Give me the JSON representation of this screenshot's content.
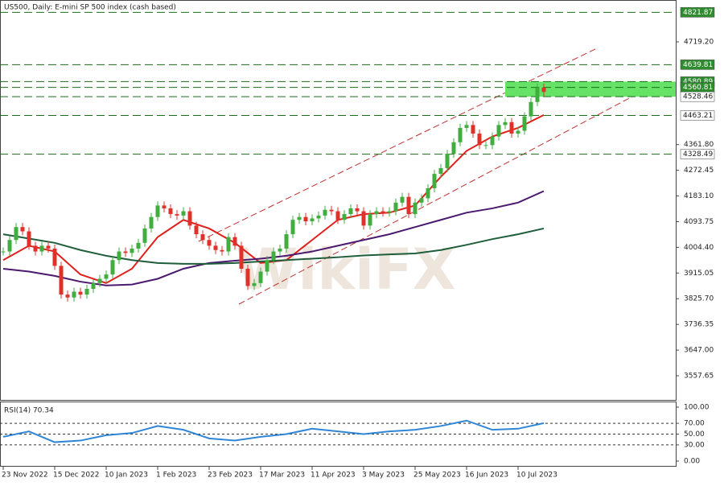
{
  "chart_data": {
    "type": "candlestick",
    "title": "US500, Daily:  E-mini SP 500 index (cash based)",
    "watermark": "WikiFX",
    "categories": [
      "23 Nov 2022",
      null,
      null,
      null,
      null,
      null,
      null,
      null,
      "15 Dec 2022",
      null,
      null,
      null,
      null,
      null,
      null,
      null,
      "10 Jan 2023",
      null,
      null,
      null,
      null,
      null,
      null,
      null,
      "1 Feb 2023",
      null,
      null,
      null,
      null,
      null,
      null,
      null,
      "23 Feb 2023",
      null,
      null,
      null,
      null,
      null,
      null,
      null,
      "17 Mar 2023",
      null,
      null,
      null,
      null,
      null,
      null,
      null,
      "11 Apr 2023",
      null,
      null,
      null,
      null,
      null,
      null,
      null,
      "3 May 2023",
      null,
      null,
      null,
      null,
      null,
      null,
      null,
      "25 May 2023",
      null,
      null,
      null,
      null,
      null,
      null,
      null,
      "16 Jun 2023",
      null,
      null,
      null,
      null,
      null,
      null,
      null,
      "10 Jul 2023",
      null,
      null,
      null,
      null
    ],
    "closes": [
      3990,
      4030,
      4075,
      4060,
      4010,
      3990,
      4010,
      4000,
      3940,
      3840,
      3830,
      3850,
      3840,
      3860,
      3880,
      3895,
      3910,
      3960,
      3990,
      3985,
      4000,
      4020,
      4070,
      4110,
      4150,
      4140,
      4120,
      4115,
      4130,
      4080,
      4050,
      4030,
      4010,
      3995,
      3990,
      4040,
      4010,
      3930,
      3870,
      3880,
      3920,
      3960,
      3990,
      4000,
      4050,
      4100,
      4110,
      4095,
      4105,
      4115,
      4135,
      4130,
      4100,
      4120,
      4140,
      4130,
      4080,
      4120,
      4130,
      4125,
      4130,
      4160,
      4180,
      4120,
      4160,
      4175,
      4210,
      4260,
      4280,
      4330,
      4370,
      4420,
      4430,
      4400,
      4360,
      4360,
      4390,
      4430,
      4440,
      4400,
      4410,
      4460,
      4510,
      4560,
      4545
    ],
    "up_color": "#3fae3f",
    "down_color": "#e0302a",
    "series": [
      {
        "color": "#e0201c",
        "x": [
          0,
          4,
          8,
          12,
          16,
          20,
          24,
          28,
          32,
          36,
          40,
          44,
          48,
          52,
          56,
          60,
          64,
          68,
          72,
          76,
          80,
          84
        ],
        "values": [
          3960,
          4010,
          3990,
          3910,
          3880,
          3930,
          4040,
          4100,
          4070,
          4020,
          3950,
          3960,
          4030,
          4100,
          4120,
          4125,
          4150,
          4250,
          4340,
          4390,
          4420,
          4465
        ]
      },
      {
        "color": "#4b1a6e",
        "x": [
          0,
          4,
          8,
          12,
          16,
          20,
          24,
          28,
          32,
          36,
          40,
          44,
          48,
          52,
          56,
          60,
          64,
          68,
          72,
          76,
          80,
          84
        ],
        "values": [
          3930,
          3920,
          3905,
          3885,
          3872,
          3875,
          3895,
          3930,
          3950,
          3958,
          3965,
          3975,
          3990,
          4010,
          4030,
          4050,
          4075,
          4100,
          4125,
          4140,
          4160,
          4200
        ]
      },
      {
        "color": "#1e5e3a",
        "x": [
          0,
          4,
          8,
          12,
          16,
          20,
          24,
          28,
          32,
          36,
          40,
          44,
          48,
          52,
          56,
          60,
          64,
          68,
          72,
          76,
          80,
          84
        ],
        "values": [
          4050,
          4035,
          4020,
          3995,
          3975,
          3960,
          3950,
          3947,
          3947,
          3950,
          3955,
          3960,
          3965,
          3970,
          3976,
          3980,
          3983,
          3995,
          4013,
          4033,
          4050,
          4070
        ]
      }
    ],
    "ylim": [
      3473.7,
      4864.8
    ],
    "yticks": [
      {
        "value": 4719.2,
        "label": "4719.20"
      },
      {
        "value": 4361.8,
        "label": "4361.80"
      },
      {
        "value": 4272.45,
        "label": "4272.45"
      },
      {
        "value": 4183.1,
        "label": "4183.10"
      },
      {
        "value": 4093.75,
        "label": "4093.75"
      },
      {
        "value": 4004.4,
        "label": "4004.40"
      },
      {
        "value": 3915.05,
        "label": "3915.05"
      },
      {
        "value": 3825.7,
        "label": "3825.70"
      },
      {
        "value": 3736.35,
        "label": "3736.35"
      },
      {
        "value": 3647,
        "label": "3647.00"
      },
      {
        "value": 3557.65,
        "label": "3557.65"
      }
    ],
    "levels": [
      4821.87,
      4639.81,
      4580.89,
      4560.81,
      4528.46,
      4463.21,
      4328.49
    ],
    "level_colors": [
      "#2e8b2e",
      "#2e8b2e",
      "#2e8b2e",
      "#2e8b2e",
      "#ffffff",
      "#ffffff",
      "#ffffff"
    ],
    "zone": {
      "from": 4528.46,
      "to": 4580.89,
      "start": 78,
      "color": "#66e266"
    },
    "rsi": {
      "title": "RSI(14) 70.34",
      "color": "#2f86d6",
      "x": [
        0,
        4,
        8,
        12,
        16,
        20,
        24,
        28,
        32,
        36,
        40,
        44,
        48,
        52,
        56,
        60,
        64,
        68,
        72,
        76,
        80,
        84
      ],
      "values": [
        45,
        55,
        35,
        38,
        48,
        52,
        65,
        58,
        42,
        38,
        45,
        50,
        60,
        55,
        50,
        55,
        58,
        65,
        75,
        58,
        60,
        70.34
      ],
      "ylim": [
        -10.4,
        110.4
      ],
      "yticks": [
        {
          "value": 100,
          "label": "100.00"
        },
        {
          "value": 70,
          "label": "70.00"
        },
        {
          "value": 50,
          "label": "50.00"
        },
        {
          "value": 30,
          "label": "30.00"
        },
        {
          "value": 0,
          "label": "0.00"
        }
      ],
      "levels": [
        70,
        50,
        30
      ]
    }
  }
}
